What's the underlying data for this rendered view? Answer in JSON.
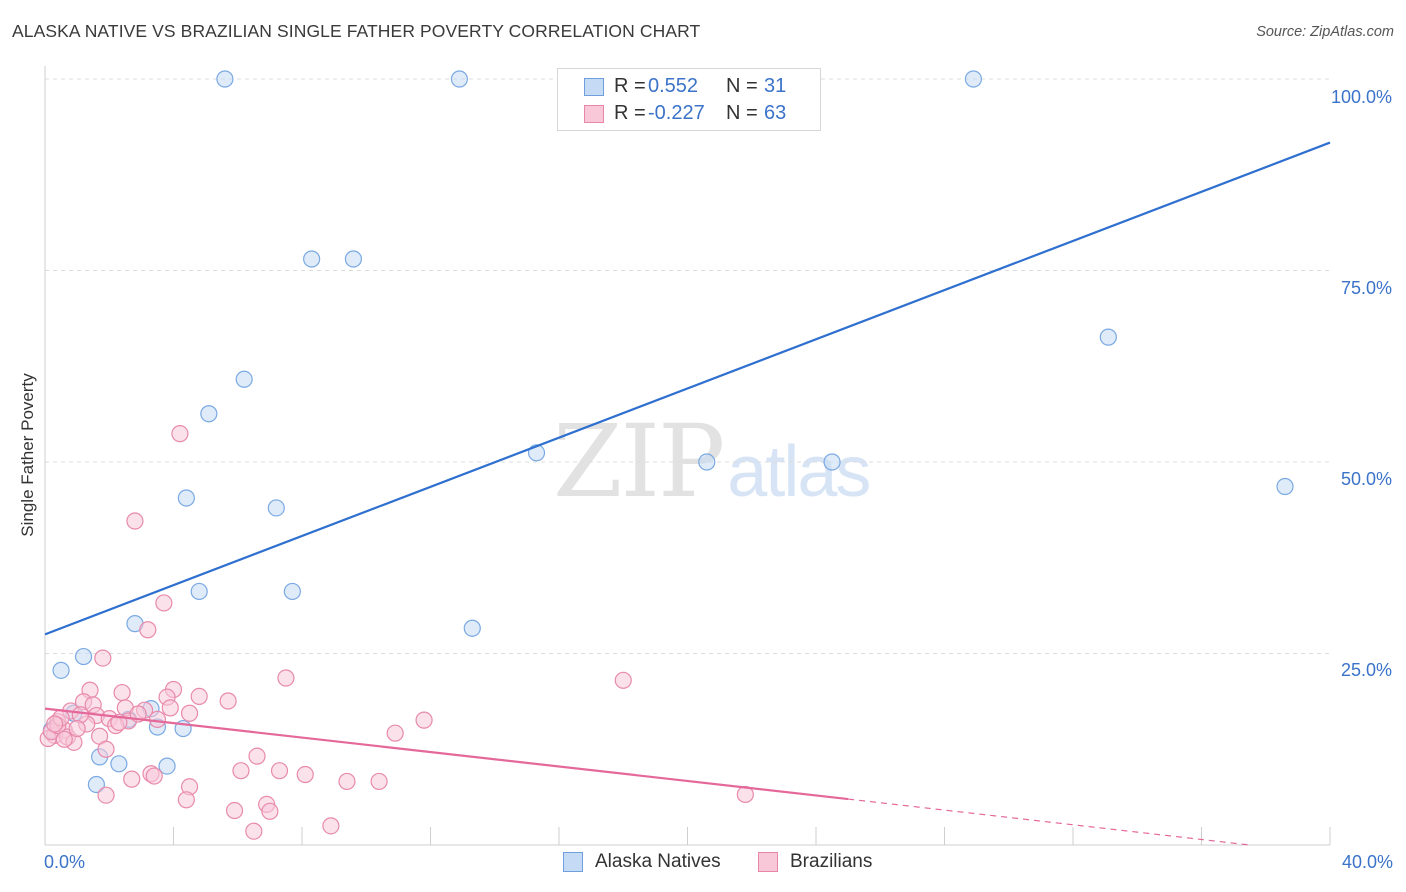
{
  "title": "ALASKA NATIVE VS BRAZILIAN SINGLE FATHER POVERTY CORRELATION CHART",
  "source": "Source: ZipAtlas.com",
  "watermark": {
    "part1": "ZIP",
    "part2": "atlas"
  },
  "legend_top": {
    "rows": [
      {
        "r_label": "R =",
        "r_value": "0.552",
        "n_label": "N =",
        "n_value": "31",
        "color": "#a9c8f0",
        "border": "#6f9fdc"
      },
      {
        "r_label": "R =",
        "r_value": "-0.227",
        "n_label": "N =",
        "n_value": "63",
        "color": "#f7bcd0",
        "border": "#e886a8"
      }
    ]
  },
  "legend_bottom": {
    "items": [
      {
        "label": "Alaska Natives",
        "color": "#a9c8f0",
        "border": "#6f9fdc"
      },
      {
        "label": "Brazilians",
        "color": "#f7bcd0",
        "border": "#e886a8"
      }
    ]
  },
  "chart_data": {
    "type": "scatter",
    "title": "ALASKA NATIVE VS BRAZILIAN SINGLE FATHER POVERTY CORRELATION CHART",
    "xlabel": "",
    "ylabel": "Single Father Poverty",
    "xlim": [
      0,
      40
    ],
    "ylim": [
      0,
      100
    ],
    "x_tick_labels": [
      "0.0%",
      "40.0%"
    ],
    "y_tick_labels": [
      "25.0%",
      "50.0%",
      "75.0%",
      "100.0%"
    ],
    "y_tick_values": [
      25,
      50,
      75,
      100
    ],
    "x_minor_ticks": [
      0,
      4,
      8,
      12,
      16,
      20,
      24,
      28,
      32,
      36,
      40
    ],
    "grid": true,
    "legend": "top-center",
    "series": [
      {
        "name": "Alaska Natives",
        "color": "#7aa9e3",
        "fill": "#c5daf4",
        "points": [
          [
            5.6,
            100
          ],
          [
            12.9,
            100
          ],
          [
            22.6,
            100
          ],
          [
            28.9,
            100
          ],
          [
            8.3,
            76.5
          ],
          [
            9.6,
            76.5
          ],
          [
            33.1,
            66.3
          ],
          [
            6.2,
            60.8
          ],
          [
            5.1,
            56.3
          ],
          [
            15.3,
            51.2
          ],
          [
            20.6,
            50.0
          ],
          [
            24.5,
            50.0
          ],
          [
            38.6,
            46.8
          ],
          [
            4.4,
            45.3
          ],
          [
            7.2,
            44.0
          ],
          [
            4.8,
            33.1
          ],
          [
            7.7,
            33.1
          ],
          [
            2.8,
            28.9
          ],
          [
            13.3,
            28.3
          ],
          [
            1.2,
            24.6
          ],
          [
            0.5,
            22.8
          ],
          [
            3.3,
            17.8
          ],
          [
            2.6,
            16.4
          ],
          [
            0.9,
            17.2
          ],
          [
            3.5,
            15.4
          ],
          [
            4.3,
            15.2
          ],
          [
            1.7,
            11.5
          ],
          [
            2.3,
            10.6
          ],
          [
            1.6,
            7.9
          ],
          [
            3.8,
            10.3
          ],
          [
            0.2,
            15.0
          ]
        ]
      },
      {
        "name": "Brazilians",
        "color": "#e88aab",
        "fill": "#f8c8d8",
        "points": [
          [
            4.2,
            53.7
          ],
          [
            2.8,
            42.3
          ],
          [
            3.7,
            31.6
          ],
          [
            3.2,
            28.1
          ],
          [
            1.8,
            24.4
          ],
          [
            7.5,
            21.8
          ],
          [
            18.0,
            21.5
          ],
          [
            4.0,
            20.3
          ],
          [
            2.4,
            19.9
          ],
          [
            3.8,
            19.3
          ],
          [
            1.4,
            20.2
          ],
          [
            4.8,
            19.4
          ],
          [
            5.7,
            18.8
          ],
          [
            1.2,
            18.7
          ],
          [
            1.5,
            18.3
          ],
          [
            2.5,
            17.9
          ],
          [
            3.1,
            17.6
          ],
          [
            0.8,
            17.5
          ],
          [
            4.5,
            17.2
          ],
          [
            1.6,
            16.9
          ],
          [
            2.0,
            16.5
          ],
          [
            2.6,
            16.2
          ],
          [
            3.5,
            16.4
          ],
          [
            0.4,
            16.1
          ],
          [
            11.8,
            16.3
          ],
          [
            1.3,
            15.8
          ],
          [
            2.2,
            15.6
          ],
          [
            0.6,
            15.0
          ],
          [
            0.3,
            14.3
          ],
          [
            0.1,
            13.9
          ],
          [
            1.7,
            14.2
          ],
          [
            10.9,
            14.6
          ],
          [
            0.7,
            14.1
          ],
          [
            0.9,
            13.4
          ],
          [
            1.9,
            12.5
          ],
          [
            6.6,
            11.6
          ],
          [
            3.3,
            9.3
          ],
          [
            2.7,
            8.6
          ],
          [
            3.4,
            9.0
          ],
          [
            6.1,
            9.7
          ],
          [
            7.3,
            9.7
          ],
          [
            8.1,
            9.2
          ],
          [
            9.4,
            8.3
          ],
          [
            10.4,
            8.3
          ],
          [
            4.5,
            7.6
          ],
          [
            1.9,
            6.5
          ],
          [
            4.4,
            5.9
          ],
          [
            21.8,
            6.6
          ],
          [
            5.9,
            4.5
          ],
          [
            6.9,
            5.3
          ],
          [
            7.0,
            4.4
          ],
          [
            8.9,
            2.5
          ],
          [
            6.5,
            1.8
          ],
          [
            0.2,
            14.8
          ],
          [
            0.4,
            15.6
          ],
          [
            1.1,
            17.0
          ],
          [
            0.5,
            16.6
          ],
          [
            2.9,
            17.1
          ],
          [
            0.6,
            13.8
          ],
          [
            1.0,
            15.2
          ],
          [
            3.9,
            17.9
          ],
          [
            2.3,
            16.0
          ],
          [
            0.3,
            15.8
          ]
        ]
      }
    ],
    "trend_lines": [
      {
        "series": "Alaska Natives",
        "x0": 0,
        "y0": 27.5,
        "x1": 40,
        "y1": 91.7,
        "style": "solid"
      },
      {
        "series": "Brazilians",
        "x0": 0,
        "y0": 17.8,
        "x1": 25,
        "y1": 6.0,
        "style": "solid",
        "extend_to_x": 37.5,
        "extend_to_y": 0.0,
        "extend_style": "dashed"
      }
    ]
  }
}
